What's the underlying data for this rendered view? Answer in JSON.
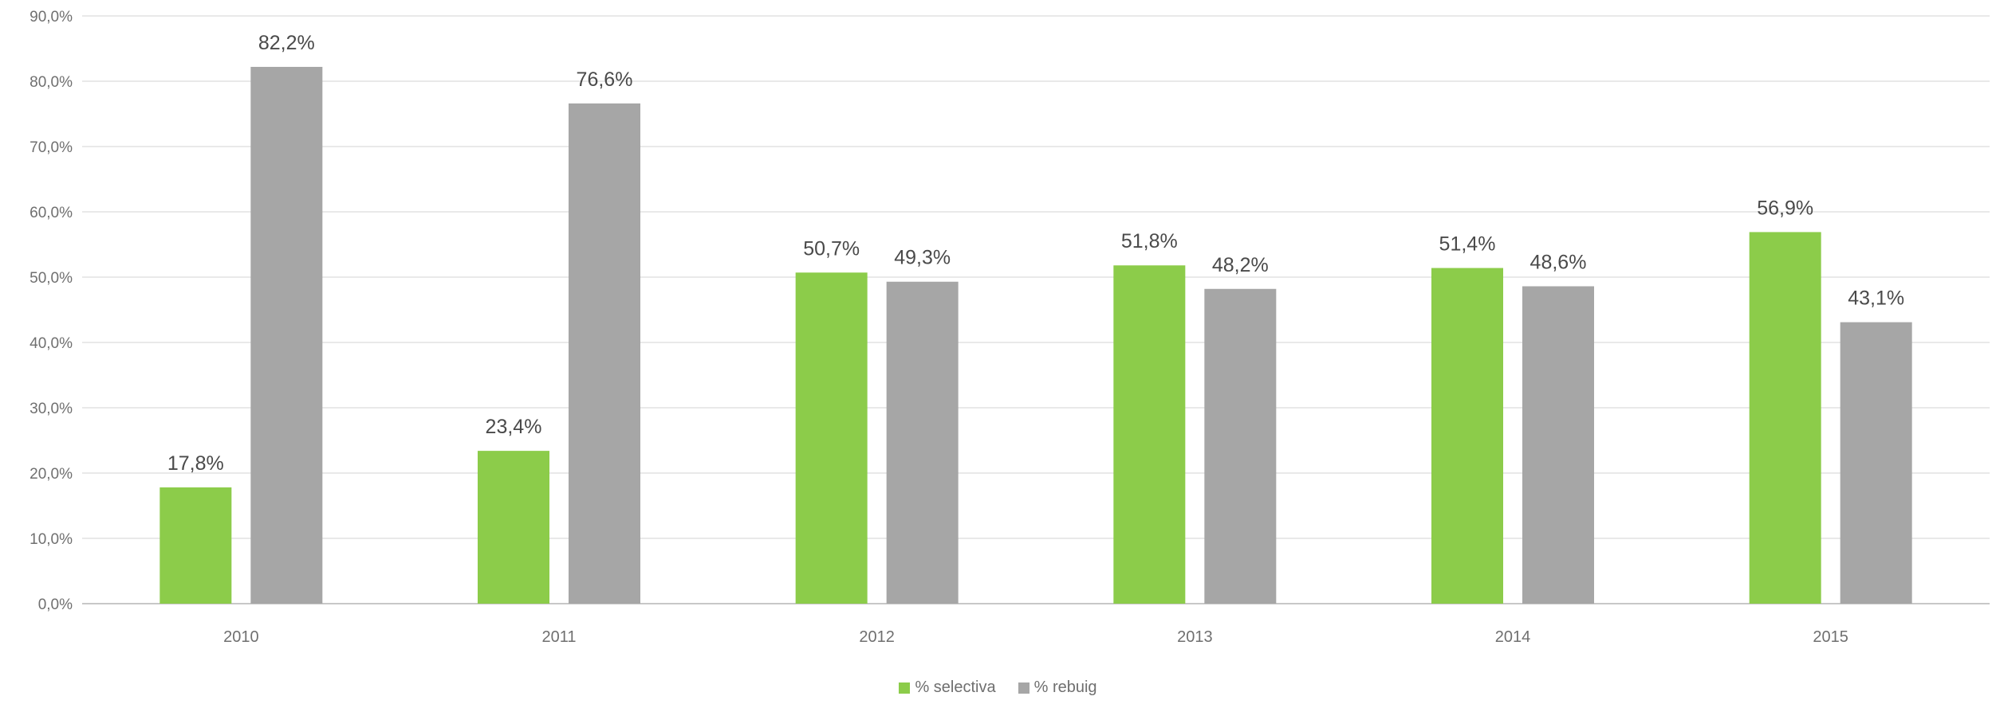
{
  "chart_data": {
    "type": "bar",
    "categories": [
      "2010",
      "2011",
      "2012",
      "2013",
      "2014",
      "2015"
    ],
    "series": [
      {
        "name": "% selectiva",
        "color": "#8ccc4a",
        "values": [
          17.8,
          23.4,
          50.7,
          51.8,
          51.4,
          56.9
        ],
        "labels": [
          "17,8%",
          "23,4%",
          "50,7%",
          "51,8%",
          "51,4%",
          "56,9%"
        ]
      },
      {
        "name": "% rebuig",
        "color": "#a6a6a6",
        "values": [
          82.2,
          76.6,
          49.3,
          48.2,
          48.6,
          43.1
        ],
        "labels": [
          "82,2%",
          "76,6%",
          "49,3%",
          "48,2%",
          "48,6%",
          "43,1%"
        ]
      }
    ],
    "ylim": [
      0,
      90
    ],
    "yticks": [
      0,
      10,
      20,
      30,
      40,
      50,
      60,
      70,
      80,
      90
    ],
    "ytick_labels": [
      "0,0%",
      "10,0%",
      "20,0%",
      "30,0%",
      "40,0%",
      "50,0%",
      "60,0%",
      "70,0%",
      "80,0%",
      "90,0%"
    ],
    "grid": true,
    "legend_position": "bottom",
    "title": "",
    "xlabel": "",
    "ylabel": ""
  }
}
